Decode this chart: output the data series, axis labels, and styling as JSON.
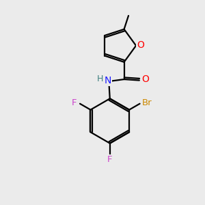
{
  "background_color": "#ebebeb",
  "bond_color": "#000000",
  "atom_colors": {
    "O": "#ff0000",
    "N": "#1a1aff",
    "F": "#cc44cc",
    "Br": "#cc8800",
    "H": "#408080",
    "C": "#000000"
  },
  "figsize": [
    3.0,
    3.0
  ],
  "dpi": 100
}
